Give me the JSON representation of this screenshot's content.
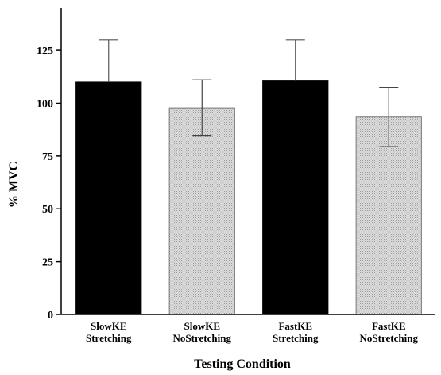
{
  "chart_data": {
    "type": "bar",
    "title": "",
    "xlabel": "Testing Condition",
    "ylabel": "% MVC",
    "ylim": [
      0,
      145
    ],
    "yticks": [
      0,
      25,
      50,
      75,
      100,
      125
    ],
    "grid": false,
    "categories": [
      [
        "SlowKE",
        "Stretching"
      ],
      [
        "SlowKE",
        "NoStretching"
      ],
      [
        "FastKE",
        "Stretching"
      ],
      [
        "FastKE",
        "NoStretching"
      ]
    ],
    "values": [
      110,
      97.5,
      110.5,
      93.5
    ],
    "error_upper": [
      130,
      111,
      130,
      107.5
    ],
    "error_lower": [
      110,
      84.5,
      110.5,
      79.5
    ],
    "bar_fills": [
      "black",
      "dotted-gray",
      "black",
      "dotted-gray"
    ],
    "colors": {
      "black_bar": "#000000",
      "gray_bar": "#d4d4d4",
      "gray_dots": "#9a9a9a"
    }
  }
}
